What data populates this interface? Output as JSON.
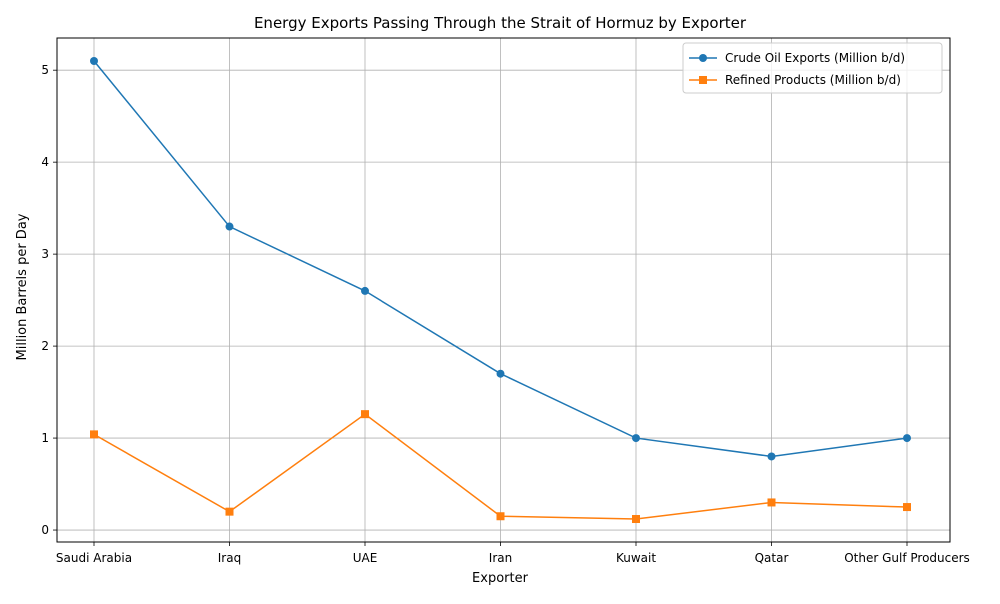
{
  "chart_data": {
    "type": "line",
    "title": "Energy Exports Passing Through the Strait of Hormuz by Exporter",
    "xlabel": "Exporter",
    "ylabel": "Million Barrels per Day",
    "categories": [
      "Saudi Arabia",
      "Iraq",
      "UAE",
      "Iran",
      "Kuwait",
      "Qatar",
      "Other Gulf Producers"
    ],
    "yticks": [
      0,
      1,
      2,
      3,
      4,
      5
    ],
    "ylim": [
      -0.13,
      5.35
    ],
    "grid": true,
    "legend_position": "top-right",
    "series": [
      {
        "name": "Crude Oil Exports (Million b/d)",
        "color": "#1f77b4",
        "marker": "circle",
        "values": [
          5.1,
          3.3,
          2.6,
          1.7,
          1.0,
          0.8,
          1.0
        ]
      },
      {
        "name": "Refined Products (Million b/d)",
        "color": "#ff7f0e",
        "marker": "square",
        "values": [
          1.04,
          0.2,
          1.26,
          0.15,
          0.12,
          0.3,
          0.25
        ]
      }
    ]
  }
}
